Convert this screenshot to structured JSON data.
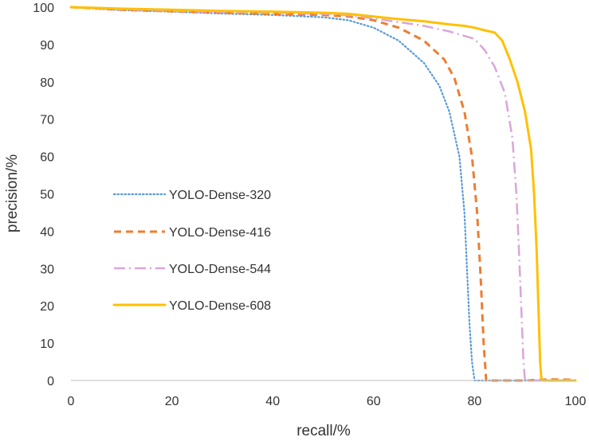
{
  "chart_data": {
    "type": "line",
    "title": "",
    "xlabel": "recall/%",
    "ylabel": "precision/%",
    "xlim": [
      0,
      100
    ],
    "ylim": [
      0,
      100
    ],
    "xticks": [
      0,
      20,
      40,
      60,
      80,
      100
    ],
    "yticks": [
      0,
      10,
      20,
      30,
      40,
      50,
      60,
      70,
      80,
      90,
      100
    ],
    "grid": false,
    "legend_position": "center-left",
    "series": [
      {
        "name": "YOLO-Dense-320",
        "color": "#5b9bd5",
        "style": "dotted",
        "x": [
          0,
          10,
          20,
          30,
          40,
          50,
          55,
          60,
          65,
          70,
          73,
          75,
          77,
          78,
          78.5,
          79,
          79.5,
          80,
          82,
          100
        ],
        "y": [
          100,
          99.2,
          98.8,
          98.3,
          97.9,
          97.3,
          96.5,
          94.5,
          91,
          85,
          79,
          72,
          60,
          45,
          30,
          15,
          5,
          0,
          0,
          0
        ]
      },
      {
        "name": "YOLO-Dense-416",
        "color": "#ed7d31",
        "style": "dashed",
        "x": [
          0,
          10,
          20,
          30,
          40,
          50,
          55,
          60,
          65,
          70,
          74,
          76,
          78,
          79.5,
          80.5,
          81.2,
          81.8,
          82.3,
          85,
          90,
          95,
          100
        ],
        "y": [
          100,
          99.3,
          98.9,
          98.5,
          98.2,
          97.9,
          97.5,
          96.5,
          94.5,
          91,
          86,
          81,
          72,
          60,
          45,
          28,
          10,
          0,
          0,
          0,
          0.3,
          0.2
        ]
      },
      {
        "name": "YOLO-Dense-544",
        "color": "#d9a6d8",
        "style": "dashdot",
        "x": [
          0,
          10,
          20,
          30,
          40,
          50,
          55,
          60,
          65,
          70,
          75,
          80,
          82,
          84,
          86,
          87.5,
          88.3,
          88.8,
          89.3,
          89.7,
          90,
          92,
          100
        ],
        "y": [
          100,
          99.4,
          99,
          98.7,
          98.5,
          98.2,
          97.8,
          97,
          96,
          95,
          93.5,
          91.5,
          88.5,
          84,
          77,
          65,
          50,
          35,
          18,
          5,
          0,
          0,
          0
        ]
      },
      {
        "name": "YOLO-Dense-608",
        "color": "#ffc000",
        "style": "solid",
        "x": [
          0,
          10,
          20,
          30,
          40,
          50,
          55,
          60,
          65,
          70,
          75,
          78,
          80,
          82,
          84,
          85.5,
          87,
          88.5,
          90,
          91.2,
          91.8,
          92.3,
          92.7,
          93,
          93.2,
          93.4,
          95,
          100
        ],
        "y": [
          100,
          99.6,
          99.3,
          99,
          98.8,
          98.5,
          98.2,
          97.5,
          96.8,
          96.2,
          95.4,
          95,
          94.5,
          93.8,
          93.2,
          91,
          86,
          80,
          72,
          62,
          50,
          35,
          18,
          5,
          1,
          0,
          0,
          0
        ]
      }
    ]
  }
}
